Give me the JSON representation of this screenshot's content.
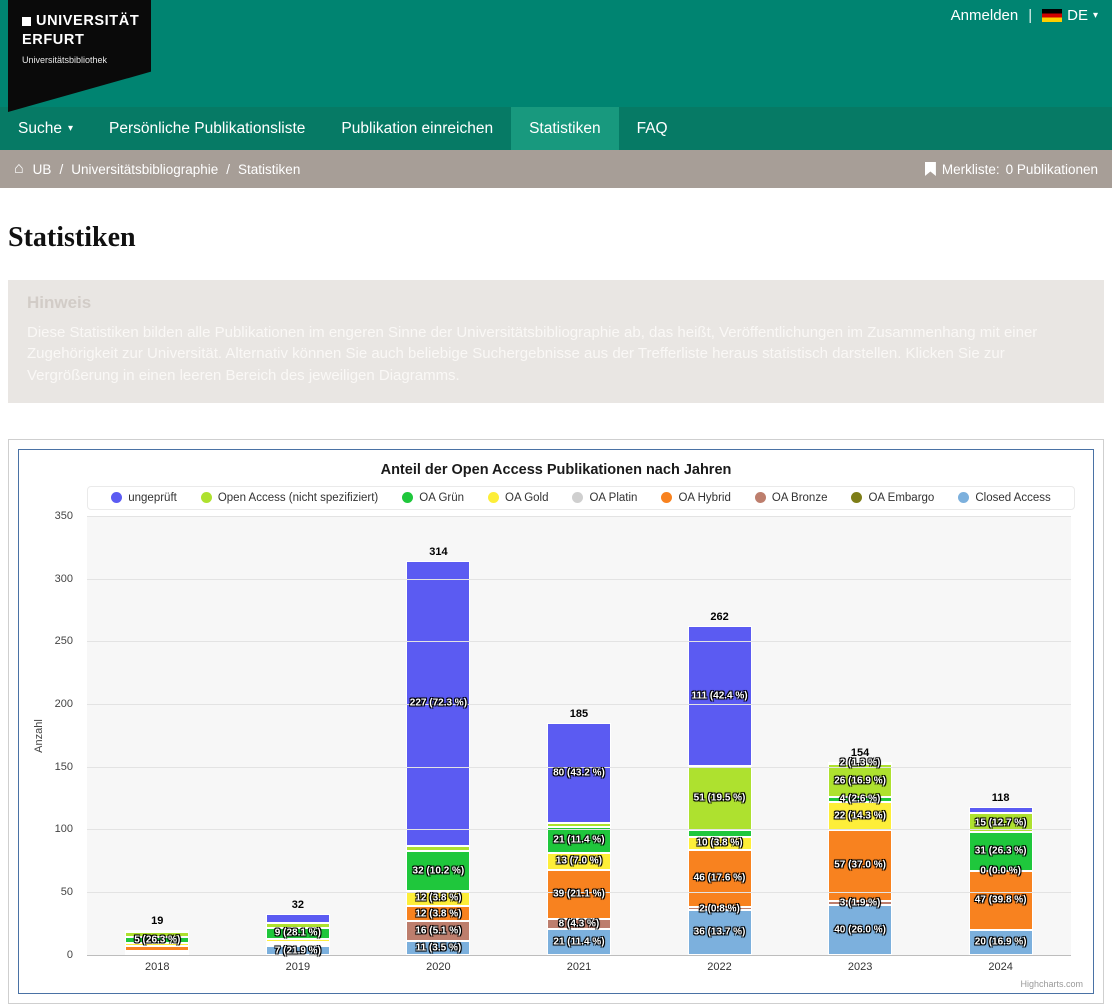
{
  "icons": {
    "home": "⌂",
    "caret_down": "▾"
  },
  "header": {
    "logo": {
      "line1": "UNIVERSITÄT",
      "line2": "ERFURT",
      "sub": "Universitätsbibliothek"
    },
    "anmelden": "Anmelden",
    "separator": "|",
    "lang": "DE"
  },
  "nav": {
    "items": [
      {
        "label": "Suche",
        "caret": "▾"
      },
      {
        "label": "Persönliche Publikationsliste"
      },
      {
        "label": "Publikation einreichen"
      },
      {
        "label": "Statistiken",
        "active": true
      },
      {
        "label": "FAQ"
      }
    ]
  },
  "breadcrumb": {
    "separator": "/",
    "items": [
      "UB",
      "Universitätsbibliographie",
      "Statistiken"
    ],
    "merkliste_label": "Merkliste:",
    "merkliste_value": "0 Publikationen"
  },
  "page": {
    "title": "Statistiken"
  },
  "hinweis": {
    "title": "Hinweis",
    "text": "Diese Statistiken bilden alle Publikationen im engeren Sinne der Universitätsbibliographie ab, das heißt, Veröffentlichungen im Zusammenhang mit einer Zugehörigkeit zur Universität. Alternativ können Sie auch beliebige Suchergebnisse aus der Trefferliste heraus statistisch darstellen. Klicken Sie zur Vergrößerung in einen leeren Bereich des jeweiligen Diagramms."
  },
  "chart_data": {
    "type": "bar",
    "stacked": true,
    "title": "Anteil der Open Access Publikationen nach Jahren",
    "ylabel": "Anzahl",
    "ylim": [
      0,
      350
    ],
    "yticks": [
      0,
      50,
      100,
      150,
      200,
      250,
      300,
      350
    ],
    "grid": true,
    "legend_position": "top",
    "credits": "Highcharts.com",
    "legend": [
      {
        "key": "ungeprueft",
        "label": "ungeprüft",
        "color": "#5b5bf2"
      },
      {
        "key": "oa_ns",
        "label": "Open Access (nicht spezifiziert)",
        "color": "#aee12f"
      },
      {
        "key": "gruen",
        "label": "OA Grün",
        "color": "#1fc73c"
      },
      {
        "key": "gold",
        "label": "OA Gold",
        "color": "#fdee39"
      },
      {
        "key": "platin",
        "label": "OA Platin",
        "color": "#cfcfcf"
      },
      {
        "key": "hybrid",
        "label": "OA Hybrid",
        "color": "#f8821f"
      },
      {
        "key": "bronze",
        "label": "OA Bronze",
        "color": "#bd7e6d"
      },
      {
        "key": "embargo",
        "label": "OA Embargo",
        "color": "#7e7e18"
      },
      {
        "key": "closed",
        "label": "Closed Access",
        "color": "#7cb0dd"
      }
    ],
    "columns": [
      {
        "year": "2018",
        "total": 19,
        "segments": [
          {
            "key": "closed",
            "value": 1
          },
          {
            "key": "bronze",
            "value": 1
          },
          {
            "key": "hybrid",
            "value": 4
          },
          {
            "key": "gold",
            "value": 2
          },
          {
            "key": "gruen",
            "value": 5,
            "label": "5 (26.3 %)"
          },
          {
            "key": "oa_ns",
            "value": 4
          },
          {
            "key": "ungeprueft",
            "value": 2
          }
        ]
      },
      {
        "year": "2019",
        "total": 32,
        "segments": [
          {
            "key": "closed",
            "value": 7,
            "label": "7 (21.9 %)"
          },
          {
            "key": "bronze",
            "value": 1
          },
          {
            "key": "hybrid",
            "value": 2
          },
          {
            "key": "gold",
            "value": 2
          },
          {
            "key": "gruen",
            "value": 9,
            "label": "9 (28.1 %)"
          },
          {
            "key": "oa_ns",
            "value": 4
          },
          {
            "key": "ungeprueft",
            "value": 7
          }
        ]
      },
      {
        "year": "2020",
        "total": 314,
        "segments": [
          {
            "key": "closed",
            "value": 11,
            "label": "11 (3.5 %)"
          },
          {
            "key": "bronze",
            "value": 16,
            "label": "16 (5.1 %)"
          },
          {
            "key": "hybrid",
            "value": 12,
            "label": "12 (3.8 %)"
          },
          {
            "key": "gold",
            "value": 12,
            "label": "12 (3.8 %)"
          },
          {
            "key": "gruen",
            "value": 32,
            "label": "32 (10.2 %)"
          },
          {
            "key": "oa_ns",
            "value": 4
          },
          {
            "key": "ungeprueft",
            "value": 227,
            "label": "227 (72.3 %)"
          }
        ]
      },
      {
        "year": "2021",
        "total": 185,
        "segments": [
          {
            "key": "closed",
            "value": 21,
            "label": "21 (11.4 %)"
          },
          {
            "key": "bronze",
            "value": 8,
            "label": "8 (4.3 %)"
          },
          {
            "key": "hybrid",
            "value": 39,
            "label": "39 (21.1 %)"
          },
          {
            "key": "gold",
            "value": 13,
            "label": "13 (7.0 %)"
          },
          {
            "key": "gruen",
            "value": 21,
            "label": "21 (11.4 %)"
          },
          {
            "key": "oa_ns",
            "value": 3
          },
          {
            "key": "ungeprueft",
            "value": 80,
            "label": "80 (43.2 %)"
          }
        ]
      },
      {
        "year": "2022",
        "total": 262,
        "segments": [
          {
            "key": "closed",
            "value": 36,
            "label": "36 (13.7 %)"
          },
          {
            "key": "bronze",
            "value": 2,
            "label": "2 (0.8 %)"
          },
          {
            "key": "hybrid",
            "value": 46,
            "label": "46 (17.6 %)"
          },
          {
            "key": "gold",
            "value": 10,
            "label": "10 (3.8 %)"
          },
          {
            "key": "gruen",
            "value": 6
          },
          {
            "key": "oa_ns",
            "value": 51,
            "label": "51 (19.5 %)"
          },
          {
            "key": "ungeprueft",
            "value": 111,
            "label": "111 (42.4 %)"
          }
        ]
      },
      {
        "year": "2023",
        "total": 154,
        "segments": [
          {
            "key": "closed",
            "value": 40,
            "label": "40 (26.0 %)"
          },
          {
            "key": "bronze",
            "value": 3,
            "label": "3 (1.9 %)"
          },
          {
            "key": "hybrid",
            "value": 57,
            "label": "57 (37.0 %)"
          },
          {
            "key": "gold",
            "value": 22,
            "label": "22 (14.3 %)"
          },
          {
            "key": "gruen",
            "value": 4,
            "label": "4 (2.6 %)"
          },
          {
            "key": "oa_ns",
            "value": 26,
            "label": "26 (16.9 %)"
          },
          {
            "key": "ungeprueft",
            "value": 2,
            "label": "2 (1.3 %)"
          }
        ]
      },
      {
        "year": "2024",
        "total": 118,
        "segments": [
          {
            "key": "closed",
            "value": 20,
            "label": "20 (16.9 %)"
          },
          {
            "key": "hybrid",
            "value": 47,
            "label": "47 (39.8 %)"
          },
          {
            "key": "gold",
            "value": 0,
            "label": "0 (0.0 %)"
          },
          {
            "key": "gruen",
            "value": 31,
            "label": "31 (26.3 %)"
          },
          {
            "key": "oa_ns",
            "value": 15,
            "label": "15 (12.7 %)"
          },
          {
            "key": "ungeprueft",
            "value": 5
          }
        ]
      }
    ]
  }
}
